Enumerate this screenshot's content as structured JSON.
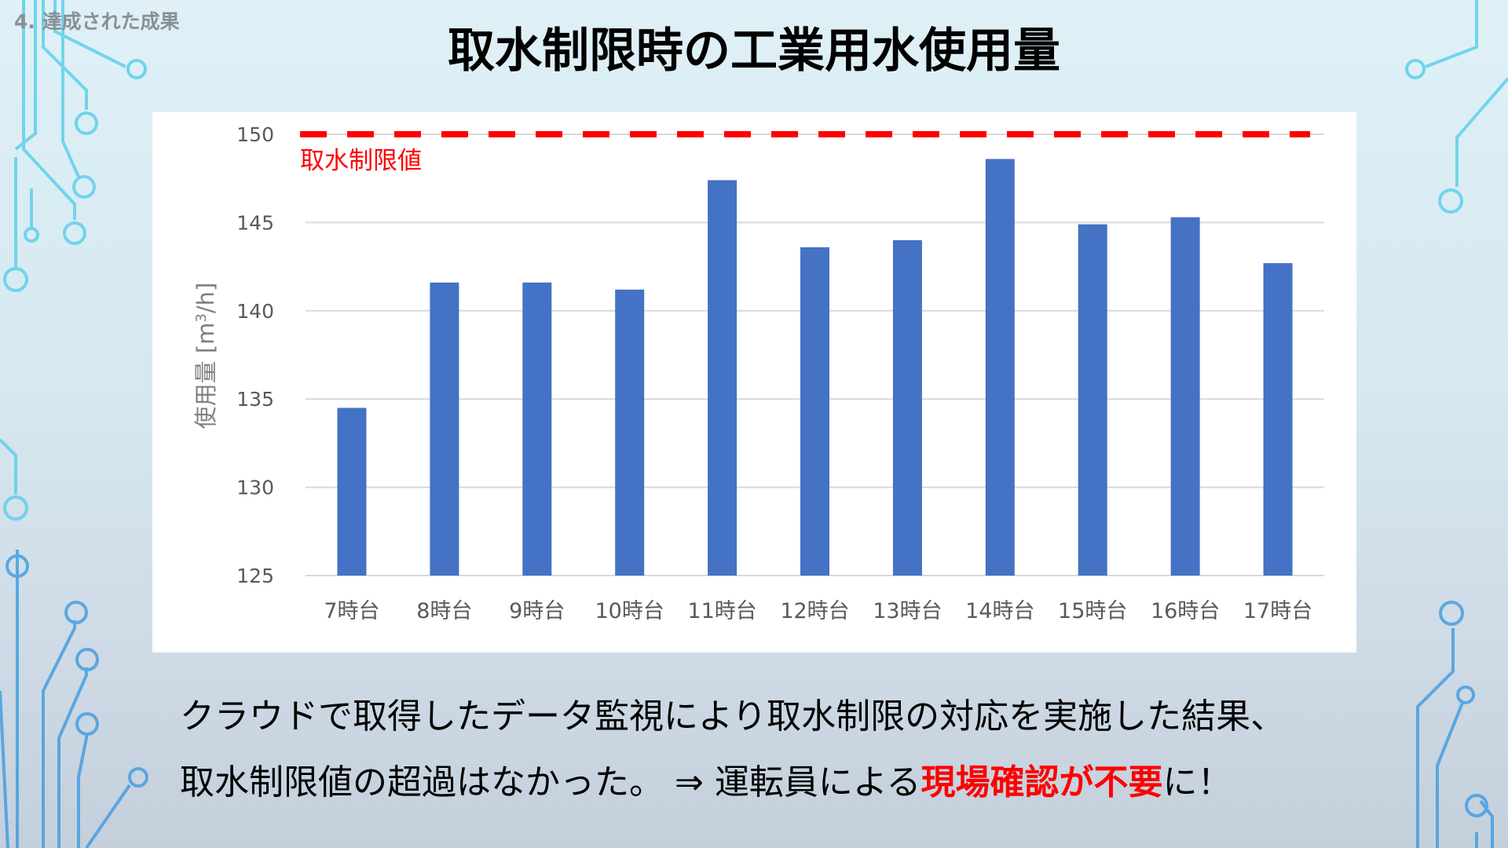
{
  "header": {
    "section_label": "4. 達成された成果",
    "title": "取水制限時の工業用水使用量"
  },
  "chart_data": {
    "type": "bar",
    "categories": [
      "7時台",
      "8時台",
      "9時台",
      "10時台",
      "11時台",
      "12時台",
      "13時台",
      "14時台",
      "15時台",
      "16時台",
      "17時台"
    ],
    "series": [
      {
        "values": [
          134.5,
          141.6,
          141.6,
          141.2,
          147.4,
          143.6,
          144.0,
          148.6,
          144.9,
          145.3,
          142.7
        ]
      }
    ],
    "ylabel": "使用量 [m³/h]",
    "ylabel_parts": {
      "main": "使用量 [m",
      "sup": "3",
      "tail": "/h]"
    },
    "ylim": [
      125,
      150
    ],
    "yticks": [
      125,
      130,
      135,
      140,
      145,
      150
    ],
    "grid": true,
    "limit_line": {
      "value": 150,
      "label": "取水制限値"
    },
    "colors": {
      "bar": "#4472c4",
      "limit": "#ff0000",
      "grid": "#d9d9d9",
      "tick_text": "#595959"
    }
  },
  "summary": {
    "line1": "クラウドで取得したデータ監視により取水制限の対応を実施した結果、",
    "line2_prefix": "取水制限値の超過はなかった。 ⇒ 運転員による",
    "line2_highlight": "現場確認が不要",
    "line2_suffix": "に！"
  }
}
